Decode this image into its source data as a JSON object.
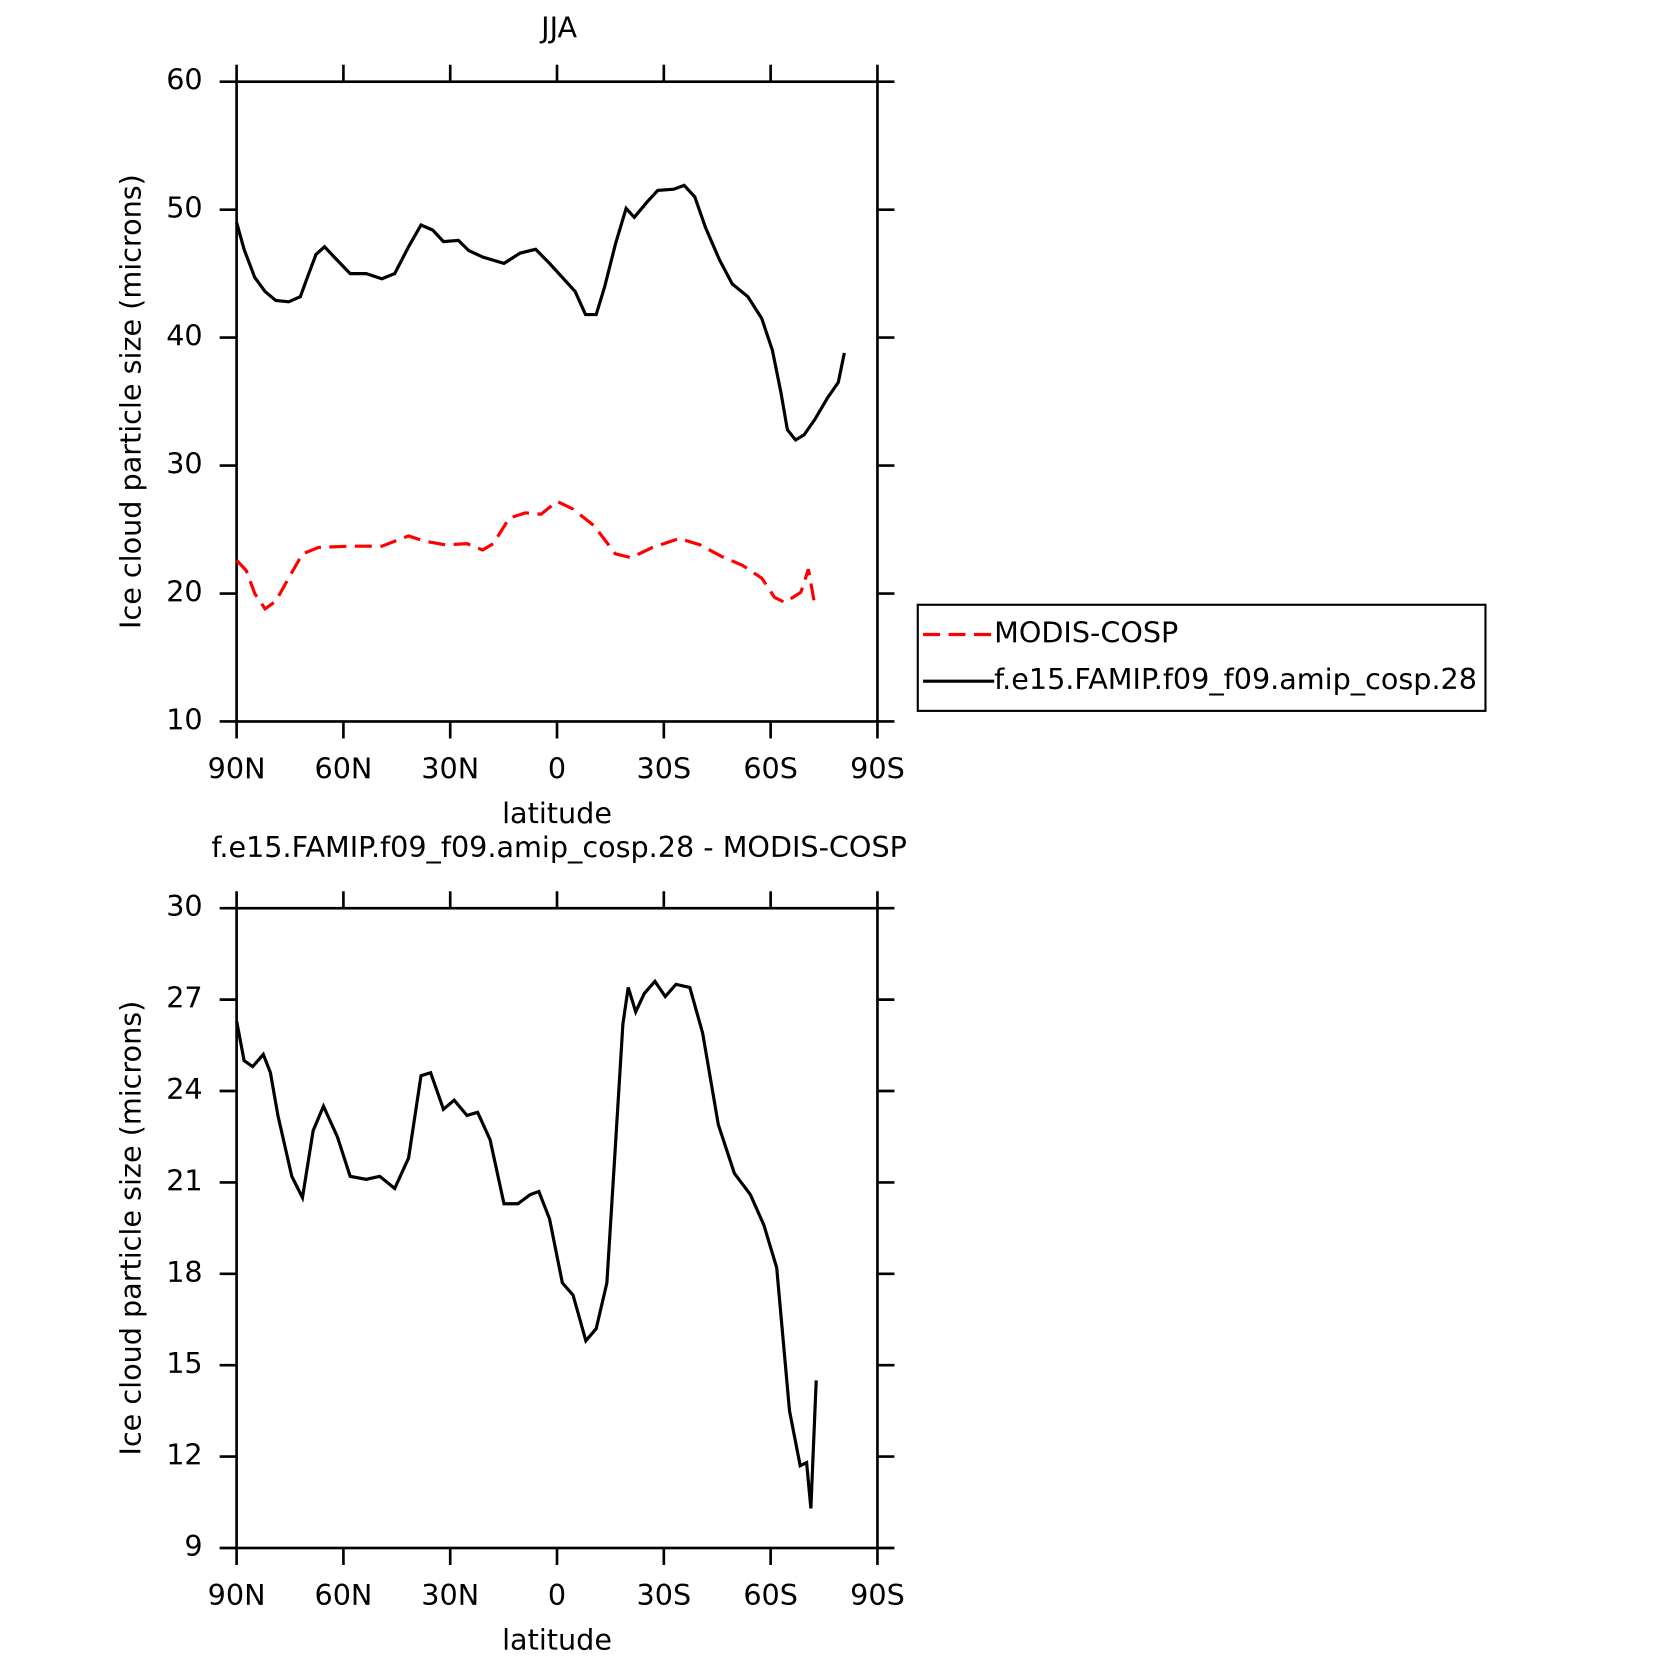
{
  "chart_data": [
    {
      "type": "line",
      "title": "JJA",
      "x_label": "latitude",
      "y_label": "Ice cloud particle size (microns)",
      "xlim": [
        90,
        -90
      ],
      "xticks": [
        {
          "value": 90,
          "label": "90N"
        },
        {
          "value": 60,
          "label": "60N"
        },
        {
          "value": 30,
          "label": "30N"
        },
        0,
        {
          "value": -30,
          "label": "30S"
        },
        {
          "value": -60,
          "label": "60S"
        },
        {
          "value": -90,
          "label": "90S"
        }
      ],
      "ylim": [
        10,
        60
      ],
      "yticks": [
        10,
        20,
        30,
        40,
        50,
        60
      ],
      "legend": "right",
      "series": [
        {
          "name": "MODIS-COSP",
          "color": "#ff0000",
          "style": "dashed",
          "x": [
            90,
            87.3,
            84.9,
            82,
            79,
            75.4,
            71.5,
            67,
            58.1,
            49.2,
            41.7,
            37.3,
            31.3,
            25.3,
            20.9,
            17.9,
            13.4,
            8.9,
            4.5,
            0,
            -4.5,
            -10.4,
            -16.4,
            -20.8,
            -26.8,
            -34.3,
            -40.2,
            -46.2,
            -52.1,
            -57.5,
            -61.1,
            -64,
            -68.5,
            -70.6,
            -72.4
          ],
          "values": [
            22.6,
            21.8,
            20.0,
            18.8,
            19.4,
            21.2,
            23.1,
            23.6,
            23.7,
            23.7,
            24.5,
            24.1,
            23.8,
            23.9,
            23.4,
            23.9,
            25.9,
            26.3,
            26.2,
            27.2,
            26.6,
            25.3,
            23.1,
            22.8,
            23.6,
            24.3,
            23.8,
            22.9,
            22.2,
            21.2,
            19.7,
            19.3,
            20.1,
            21.9,
            19.1
          ]
        },
        {
          "name": "f.e15.FAMIP.f09_f09.amip_cosp.28",
          "color": "#000000",
          "style": "solid",
          "x": [
            90,
            87.9,
            84.9,
            82,
            79,
            75.4,
            72.1,
            70,
            67.7,
            65.3,
            62.6,
            58.1,
            53.6,
            49.2,
            45.6,
            41.7,
            38.2,
            34.9,
            31.9,
            27.7,
            24.8,
            20.9,
            14.9,
            10.4,
            6,
            2.1,
            -1.5,
            -5.1,
            -8,
            -11,
            -13.4,
            -16.4,
            -19.4,
            -21.7,
            -25.3,
            -28.3,
            -32.8,
            -35.7,
            -38.7,
            -41.7,
            -45.6,
            -49.2,
            -53.6,
            -57.5,
            -60.5,
            -62.9,
            -64.7,
            -67,
            -69.4,
            -72.4,
            -76,
            -79,
            -80.7
          ],
          "values": [
            49.0,
            46.9,
            44.7,
            43.6,
            42.9,
            42.8,
            43.2,
            44.8,
            46.5,
            47.1,
            46.3,
            45.0,
            45.0,
            44.6,
            45.0,
            47.1,
            48.8,
            48.4,
            47.5,
            47.6,
            46.8,
            46.3,
            45.8,
            46.6,
            46.9,
            45.8,
            44.7,
            43.6,
            41.8,
            41.8,
            44.0,
            47.3,
            50.1,
            49.4,
            50.6,
            51.5,
            51.6,
            51.9,
            51.0,
            48.6,
            46.1,
            44.2,
            43.2,
            41.5,
            39.0,
            35.7,
            32.8,
            32.0,
            32.4,
            33.6,
            35.3,
            36.5,
            38.8
          ]
        }
      ]
    },
    {
      "type": "line",
      "title": "f.e15.FAMIP.f09_f09.amip_cosp.28 - MODIS-COSP",
      "x_label": "latitude",
      "y_label": "Ice cloud particle size (microns)",
      "xlim": [
        90,
        -90
      ],
      "xticks": [
        {
          "value": 90,
          "label": "90N"
        },
        {
          "value": 60,
          "label": "60N"
        },
        {
          "value": 30,
          "label": "30N"
        },
        0,
        {
          "value": -30,
          "label": "30S"
        },
        {
          "value": -60,
          "label": "60S"
        },
        {
          "value": -90,
          "label": "90S"
        }
      ],
      "ylim": [
        9,
        30
      ],
      "yticks": [
        9,
        12,
        15,
        18,
        21,
        24,
        27,
        30
      ],
      "series": [
        {
          "color": "#000000",
          "style": "solid",
          "x": [
            90,
            87.9,
            85.5,
            82.5,
            80.5,
            78.4,
            74.5,
            71.5,
            68.5,
            65.6,
            61.7,
            58.1,
            53.6,
            49.8,
            45.6,
            41.7,
            38.2,
            35.5,
            31.9,
            28.9,
            25.3,
            22.3,
            18.8,
            14.9,
            11,
            7.5,
            5.1,
            2.1,
            -1.5,
            -4.5,
            -8.1,
            -11,
            -14,
            -16.4,
            -18.5,
            -20,
            -22.1,
            -24.5,
            -27.5,
            -30.4,
            -33.4,
            -37.3,
            -40.9,
            -45.3,
            -49.8,
            -54.3,
            -58.1,
            -61.7,
            -65.3,
            -68.3,
            -70.1,
            -71.3,
            -72.8
          ],
          "values": [
            26.3,
            25.0,
            24.8,
            25.2,
            24.6,
            23.2,
            21.2,
            20.5,
            22.7,
            23.5,
            22.5,
            21.2,
            21.1,
            21.2,
            20.8,
            21.8,
            24.5,
            24.6,
            23.4,
            23.7,
            23.2,
            23.3,
            22.4,
            20.3,
            20.3,
            20.6,
            20.7,
            19.8,
            17.7,
            17.3,
            15.8,
            16.2,
            17.7,
            22.2,
            26.2,
            27.4,
            26.6,
            27.2,
            27.6,
            27.1,
            27.5,
            27.4,
            25.9,
            22.9,
            21.3,
            20.6,
            19.6,
            18.2,
            13.5,
            11.7,
            11.8,
            10.3,
            14.5
          ]
        }
      ]
    }
  ]
}
